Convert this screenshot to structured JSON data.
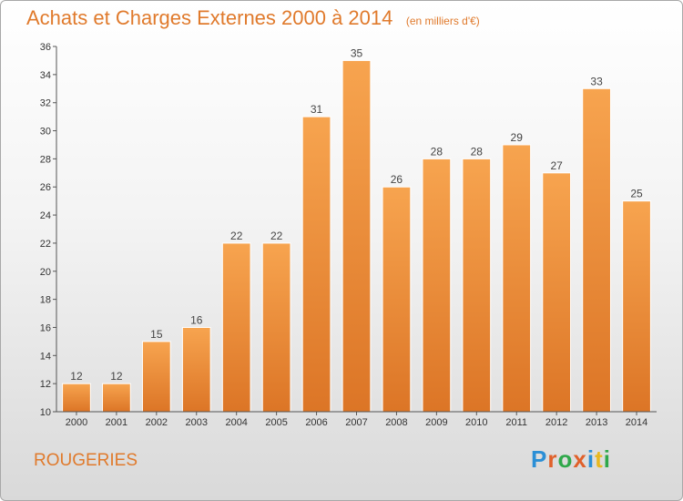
{
  "header": {
    "title": "Achats et Charges Externes 2000 à 2014",
    "subtitle": "(en milliers d'€)"
  },
  "footer": {
    "commune": "ROUGERIES",
    "logo_text": "Proxiti",
    "logo_letter_colors": [
      "#2b8fd6",
      "#e0602a",
      "#2fa84a",
      "#e0602a",
      "#2b8fd6",
      "#e8b820",
      "#2fa84a"
    ]
  },
  "chart_data": {
    "type": "bar",
    "title": "Achats et Charges Externes 2000 à 2014",
    "subtitle": "(en milliers d'€)",
    "xlabel": "",
    "ylabel": "",
    "categories": [
      "2000",
      "2001",
      "2002",
      "2003",
      "2004",
      "2005",
      "2006",
      "2007",
      "2008",
      "2009",
      "2010",
      "2011",
      "2012",
      "2013",
      "2014"
    ],
    "values": [
      12,
      12,
      15,
      16,
      22,
      22,
      31,
      35,
      26,
      28,
      28,
      29,
      27,
      33,
      25
    ],
    "ylim": [
      10,
      36
    ],
    "yticks": [
      10,
      12,
      14,
      16,
      18,
      20,
      22,
      24,
      26,
      28,
      30,
      32,
      34,
      36
    ],
    "grid": false,
    "data_labels": true,
    "colors": {
      "bar_top": "#f7a44f",
      "bar_bottom": "#dc7526",
      "bar_stroke": "#ffffff",
      "axis": "#555555",
      "title": "#e07a2c"
    }
  }
}
